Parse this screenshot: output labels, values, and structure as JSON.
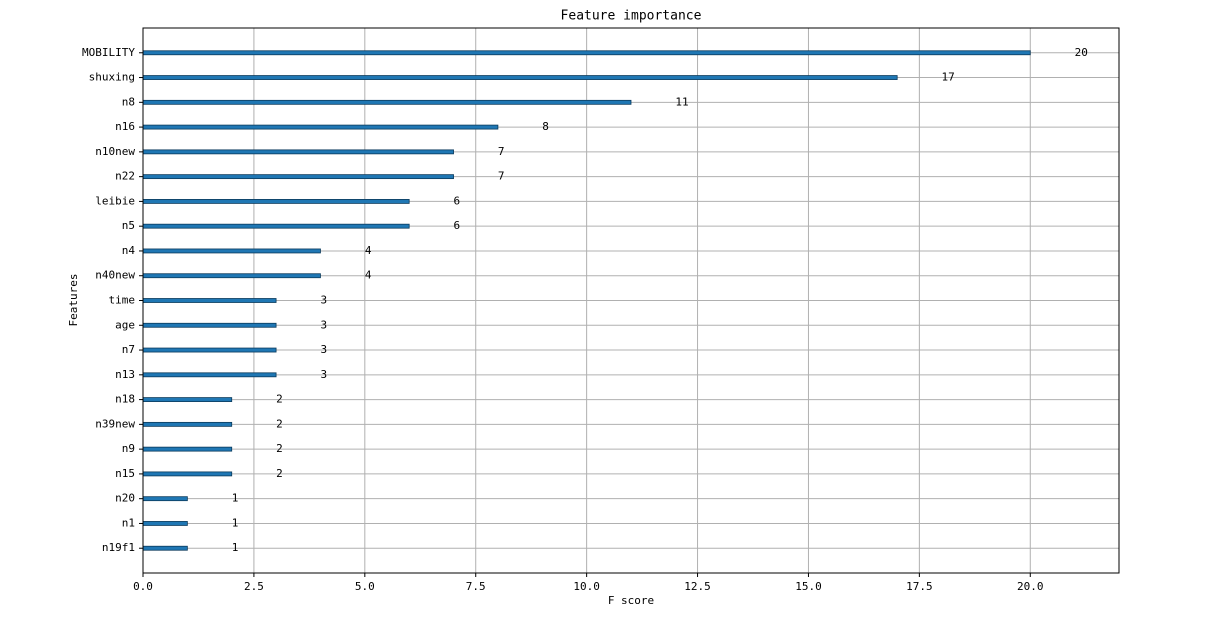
{
  "chart_data": {
    "type": "barh",
    "title": "Feature importance",
    "x_label": "F score",
    "y_label": "Features",
    "categories": [
      "MOBILITY",
      "shuxing",
      "n8",
      "n16",
      "n10new",
      "n22",
      "leibie",
      "n5",
      "n4",
      "n40new",
      "time",
      "age",
      "n7",
      "n13",
      "n18",
      "n39new",
      "n9",
      "n15",
      "n20",
      "n1",
      "n19f1"
    ],
    "values": [
      20,
      17,
      11,
      8,
      7,
      7,
      6,
      6,
      4,
      4,
      3,
      3,
      3,
      3,
      2,
      2,
      2,
      2,
      1,
      1,
      1
    ],
    "color": "#1f77b4",
    "xlim": [
      0,
      22
    ],
    "xticks": [
      {
        "value": 0,
        "label": "0.0"
      },
      2.5,
      {
        "value": 5,
        "label": "5.0"
      },
      7.5,
      {
        "value": 10,
        "label": "10.0"
      },
      12.5,
      {
        "value": 15,
        "label": "15.0"
      },
      17.5,
      {
        "value": 20,
        "label": "20.0"
      }
    ],
    "grid": true
  }
}
